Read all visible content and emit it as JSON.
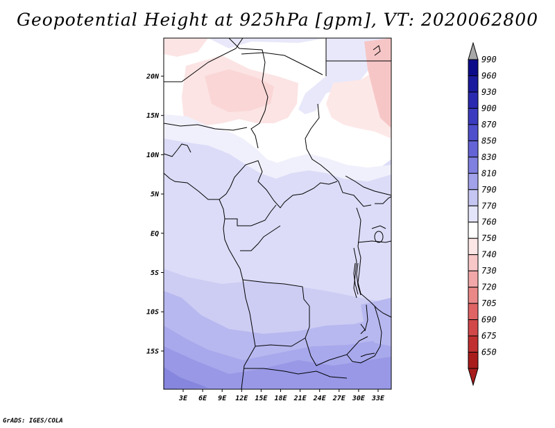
{
  "title": "Geopotential Height at 925hPa [gpm], VT: 2020062800",
  "footer": "GrADS: IGES/COLA",
  "map": {
    "lat_ticks": [
      "20N",
      "15N",
      "10N",
      "5N",
      "EQ",
      "5S",
      "10S",
      "15S"
    ],
    "lon_ticks": [
      "3E",
      "6E",
      "9E",
      "12E",
      "15E",
      "18E",
      "21E",
      "24E",
      "27E",
      "30E",
      "33E"
    ]
  },
  "colorbar": {
    "levels": [
      {
        "label": "990",
        "color": "#0b0b8a"
      },
      {
        "label": "960",
        "color": "#1a1a9e"
      },
      {
        "label": "930",
        "color": "#2a2ab0"
      },
      {
        "label": "900",
        "color": "#3b3bc0"
      },
      {
        "label": "870",
        "color": "#4f4fcc"
      },
      {
        "label": "850",
        "color": "#6464d6"
      },
      {
        "label": "830",
        "color": "#8080e0"
      },
      {
        "label": "810",
        "color": "#a2a2ea"
      },
      {
        "label": "790",
        "color": "#c6c6f2"
      },
      {
        "label": "770",
        "color": "#e4e4fa"
      },
      {
        "label": "760",
        "color": "#ffffff"
      },
      {
        "label": "750",
        "color": "#fde6e6"
      },
      {
        "label": "740",
        "color": "#f8c8c8"
      },
      {
        "label": "730",
        "color": "#f2a8a8"
      },
      {
        "label": "720",
        "color": "#ea8888"
      },
      {
        "label": "705",
        "color": "#e06464"
      },
      {
        "label": "690",
        "color": "#d24848"
      },
      {
        "label": "675",
        "color": "#c03030"
      },
      {
        "label": "650",
        "color": "#a81c1c"
      }
    ],
    "top_arrow_color": "#a8a8a8",
    "bottom_arrow_color": "#a81c1c"
  }
}
